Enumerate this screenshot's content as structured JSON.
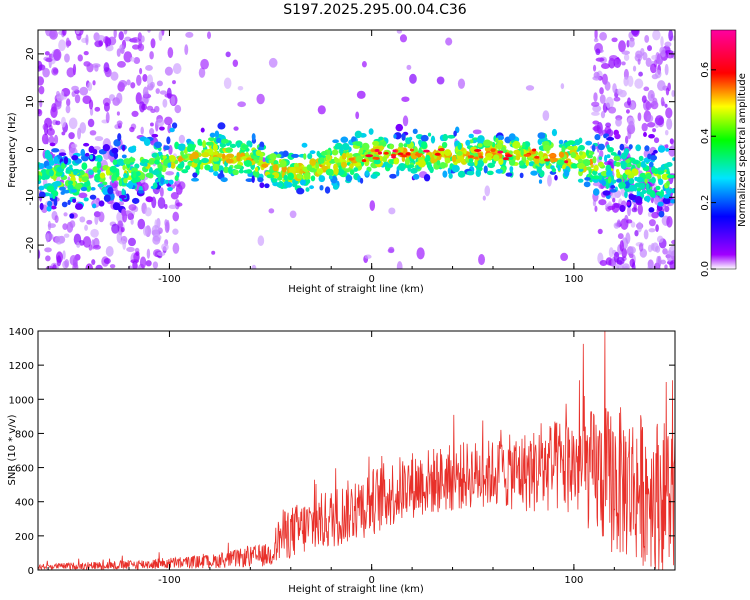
{
  "page": {
    "title": "S197.2025.295.00.04.C36"
  },
  "chart_data": [
    {
      "type": "heatmap",
      "title": "S197.2025.295.00.04.C36",
      "xlabel": "Height of straight line (km)",
      "ylabel": "Frequency (Hz)",
      "xlim": [
        -165,
        150
      ],
      "ylim": [
        -25,
        25
      ],
      "xticks": [
        -100,
        0,
        100
      ],
      "yticks": [
        -20,
        -10,
        0,
        10,
        20
      ],
      "colorbar": {
        "label": "Normalized spectral amplitude",
        "range": [
          0.0,
          0.72
        ],
        "ticks": [
          0.0,
          0.2,
          0.4,
          0.6
        ],
        "tick_labels": [
          "0.0",
          "0.2",
          "0.4",
          "0.6"
        ],
        "colormap": "rainbow (purple-blue-cyan-green-yellow-red-magenta)"
      },
      "band_center_hz": [
        {
          "x": -150,
          "y": -6
        },
        {
          "x": -120,
          "y": -5
        },
        {
          "x": -100,
          "y": -2
        },
        {
          "x": -80,
          "y": -1
        },
        {
          "x": -60,
          "y": -2
        },
        {
          "x": -40,
          "y": -5
        },
        {
          "x": -20,
          "y": -3
        },
        {
          "x": 0,
          "y": -1
        },
        {
          "x": 20,
          "y": -1
        },
        {
          "x": 40,
          "y": -1
        },
        {
          "x": 60,
          "y": -1
        },
        {
          "x": 80,
          "y": -1
        },
        {
          "x": 100,
          "y": -2
        },
        {
          "x": 120,
          "y": -4
        },
        {
          "x": 145,
          "y": -6
        }
      ]
    },
    {
      "type": "line",
      "xlabel": "Height of straight line (km)",
      "ylabel": "SNR (10 * v/v)",
      "xlim": [
        -165,
        150
      ],
      "ylim": [
        0,
        1400
      ],
      "xticks": [
        -100,
        0,
        100
      ],
      "yticks": [
        0,
        200,
        400,
        600,
        800,
        1000,
        1200,
        1400
      ],
      "line_color": "#e8302a",
      "envelope_mean": [
        {
          "x": -165,
          "y": 20
        },
        {
          "x": -120,
          "y": 30
        },
        {
          "x": -80,
          "y": 50
        },
        {
          "x": -50,
          "y": 90
        },
        {
          "x": -45,
          "y": 200
        },
        {
          "x": -20,
          "y": 300
        },
        {
          "x": 0,
          "y": 400
        },
        {
          "x": 20,
          "y": 500
        },
        {
          "x": 50,
          "y": 560
        },
        {
          "x": 80,
          "y": 580
        },
        {
          "x": 100,
          "y": 620
        },
        {
          "x": 120,
          "y": 520
        },
        {
          "x": 150,
          "y": 420
        }
      ],
      "envelope_spread": [
        {
          "x": -165,
          "y": 15
        },
        {
          "x": -80,
          "y": 40
        },
        {
          "x": -50,
          "y": 70
        },
        {
          "x": -45,
          "y": 150
        },
        {
          "x": 0,
          "y": 200
        },
        {
          "x": 60,
          "y": 200
        },
        {
          "x": 100,
          "y": 300
        },
        {
          "x": 120,
          "y": 450
        },
        {
          "x": 150,
          "y": 450
        }
      ]
    }
  ]
}
